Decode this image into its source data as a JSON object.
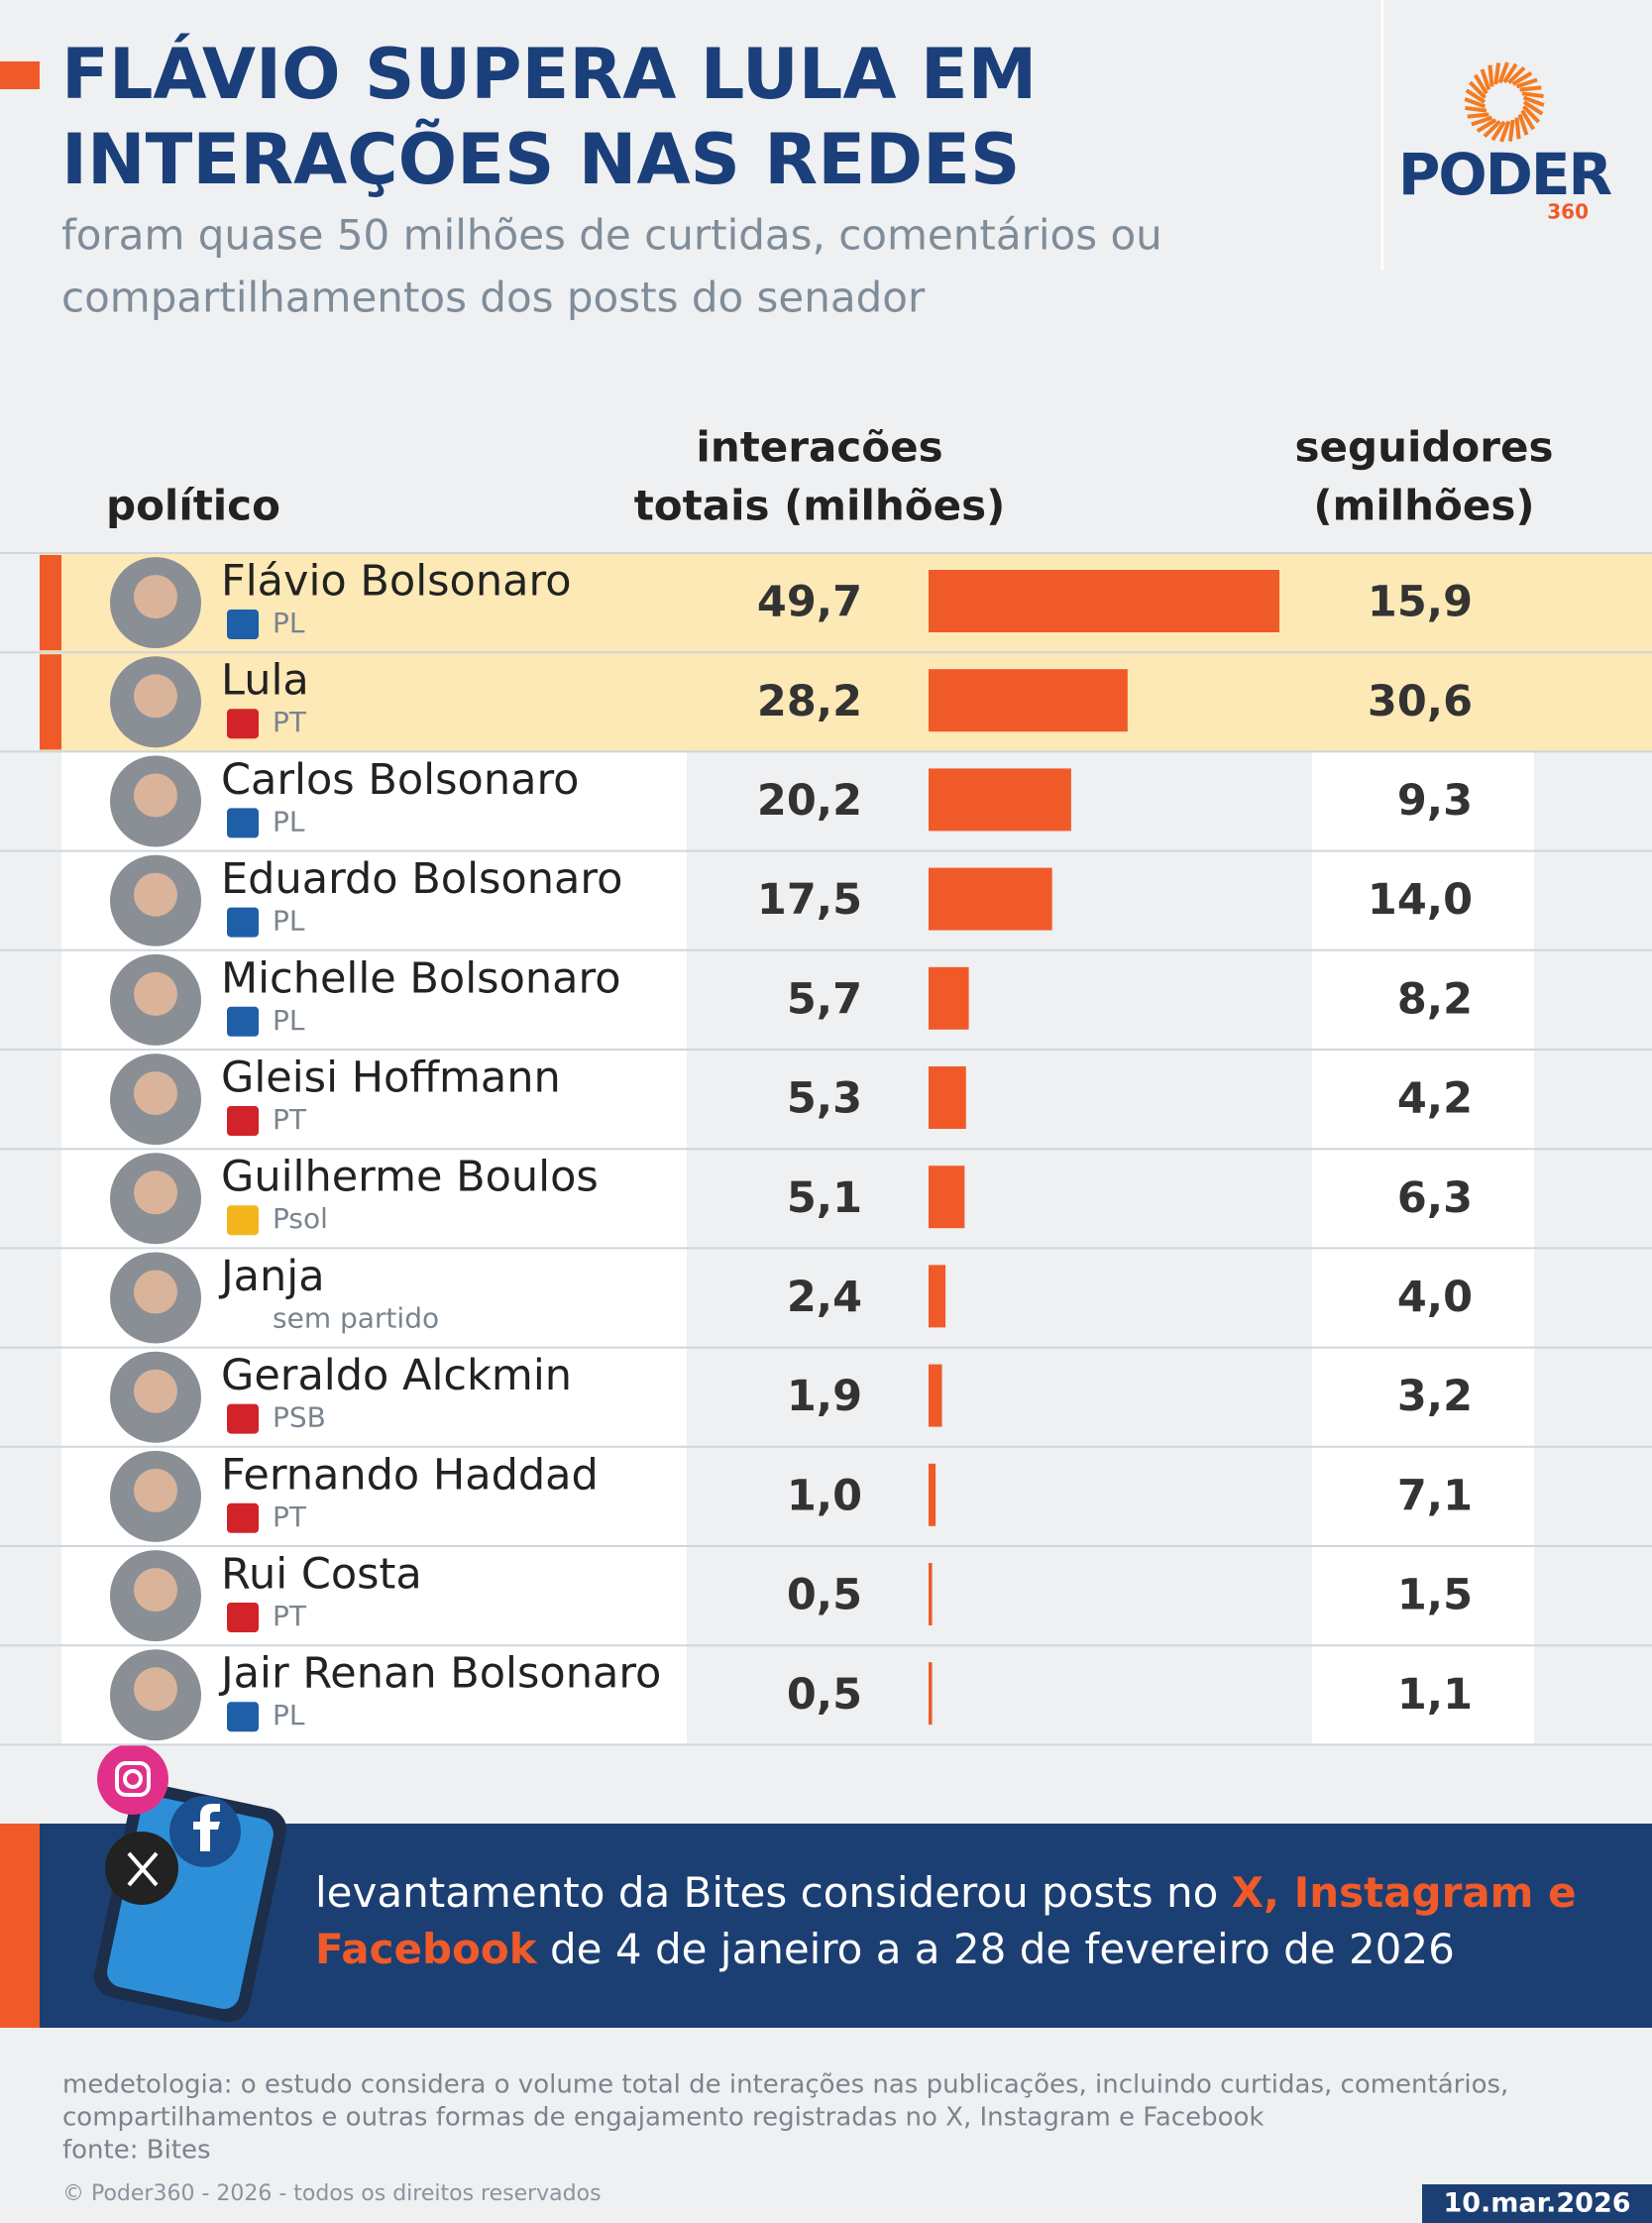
{
  "chart_data": {
    "type": "bar",
    "title": [
      "FLÁVIO SUPERA LULA EM",
      "INTERAÇÕES NAS REDES"
    ],
    "subtitle": [
      "foram quase 50 milhões de curtidas, comentários ou",
      "compartilhamentos dos posts do senador"
    ],
    "column_headers": {
      "name": [
        "político"
      ],
      "values": [
        "interacões",
        "totais (milhões)"
      ],
      "followers": [
        "seguidores",
        "(milhões)"
      ]
    },
    "categories": [
      "Flávio Bolsonaro",
      "Lula",
      "Carlos Bolsonaro",
      "Eduardo Bolsonaro",
      "Michelle Bolsonaro",
      "Gleisi Hoffmann",
      "Guilherme Boulos",
      "Janja",
      "Geraldo Alckmin",
      "Fernando Haddad",
      "Rui Costa",
      "Jair Renan Bolsonaro"
    ],
    "parties": [
      "PL",
      "PT",
      "PL",
      "PL",
      "PL",
      "PT",
      "Psol",
      "sem partido",
      "PSB",
      "PT",
      "PT",
      "PL"
    ],
    "party_icon_colors": [
      "#1f5fa8",
      "#d2232a",
      "#1f5fa8",
      "#1f5fa8",
      "#1f5fa8",
      "#d2232a",
      "#f2b51c",
      null,
      "#d2232a",
      "#d2232a",
      "#d2232a",
      "#1f5fa8"
    ],
    "values": [
      49.7,
      28.2,
      20.2,
      17.5,
      5.7,
      5.3,
      5.1,
      2.4,
      1.9,
      1.0,
      0.5,
      0.5
    ],
    "value_labels": [
      "49,7",
      "28,2",
      "20,2",
      "17,5",
      "5,7",
      "5,3",
      "5,1",
      "2,4",
      "1,9",
      "1,0",
      "0,5",
      "0,5"
    ],
    "followers": [
      "15,9",
      "30,6",
      "9,3",
      "14,0",
      "8,2",
      "4,2",
      "6,3",
      "4,0",
      "3,2",
      "7,1",
      "1,5",
      "1,1"
    ],
    "color": "#f05a28",
    "highlight": [
      0,
      1
    ]
  },
  "logo": {
    "name": "PODER",
    "number": "360"
  },
  "banner": [
    [
      {
        "text": "levantamento da Bites considerou posts no "
      },
      {
        "text": "X, Instagram e",
        "highlight": true
      }
    ],
    [
      {
        "text": "Facebook",
        "highlight": true
      },
      {
        "text": " de 4 de janeiro a a 28 de fevereiro de 2026"
      }
    ]
  ],
  "notes": [
    "medetologia: o estudo considera o volume total de interações nas publicações, incluindo curtidas, comentários,",
    "compartilhamentos e outras formas de engajamento registradas no X, Instagram e Facebook",
    "fonte: Bites"
  ],
  "copyright": "© Poder360 - 2026 - todos os direitos reservados",
  "date": "10.mar.2026"
}
